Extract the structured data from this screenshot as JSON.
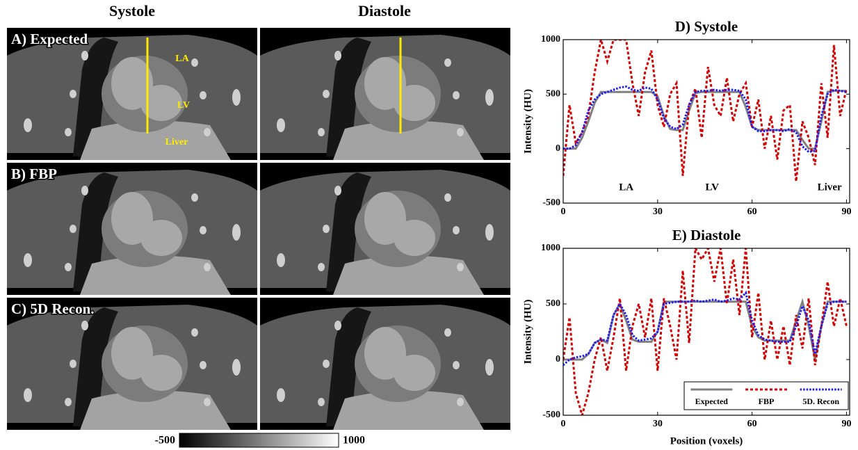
{
  "figure": {
    "column_titles": [
      "Systole",
      "Diastole"
    ],
    "row_labels": [
      "A) Expected",
      "B) FBP",
      "C) 5D Recon."
    ],
    "anatomy_labels": [
      "LA",
      "LV",
      "Liver"
    ],
    "colorbar": {
      "ticks": [
        -500,
        1000
      ]
    }
  },
  "chart_data": [
    {
      "type": "line",
      "title": "D) Systole",
      "y_label": "Intensity (HU)",
      "x": [
        0,
        2,
        4,
        6,
        8,
        10,
        12,
        14,
        16,
        18,
        20,
        22,
        24,
        26,
        28,
        30,
        32,
        34,
        36,
        38,
        40,
        42,
        44,
        46,
        48,
        50,
        52,
        54,
        56,
        58,
        60,
        62,
        64,
        66,
        68,
        70,
        72,
        74,
        76,
        78,
        80,
        82,
        84,
        86,
        88,
        90
      ],
      "xlim": [
        0,
        91
      ],
      "xticks": [
        0,
        30,
        60,
        90
      ],
      "ylim": [
        -500,
        1000
      ],
      "yticks": [
        -500,
        0,
        500,
        1000
      ],
      "annotations": [
        "LA",
        "LV",
        "Liver"
      ],
      "series": [
        {
          "name": "Expected",
          "color": "#808080",
          "style": "solid",
          "values": [
            0,
            0,
            0,
            100,
            250,
            420,
            520,
            520,
            520,
            520,
            520,
            520,
            520,
            520,
            520,
            480,
            300,
            180,
            170,
            170,
            350,
            510,
            520,
            520,
            520,
            520,
            520,
            520,
            520,
            380,
            200,
            170,
            170,
            170,
            170,
            170,
            170,
            170,
            80,
            0,
            0,
            250,
            520,
            530,
            530,
            530
          ]
        },
        {
          "name": "FBP",
          "color": "#d40000",
          "style": "dotted",
          "values": [
            -250,
            400,
            50,
            150,
            300,
            700,
            1000,
            800,
            1000,
            1000,
            1000,
            600,
            300,
            700,
            900,
            400,
            200,
            500,
            600,
            -250,
            400,
            550,
            100,
            750,
            400,
            300,
            650,
            250,
            500,
            600,
            200,
            450,
            0,
            300,
            -100,
            350,
            400,
            -300,
            250,
            100,
            -150,
            600,
            100,
            950,
            300,
            550
          ]
        },
        {
          "name": "5D. Recon",
          "color": "#1a1aff",
          "style": "dotted-fine",
          "values": [
            0,
            0,
            30,
            150,
            350,
            450,
            500,
            520,
            540,
            560,
            570,
            540,
            530,
            560,
            550,
            450,
            280,
            200,
            180,
            220,
            400,
            520,
            530,
            530,
            540,
            530,
            540,
            540,
            530,
            450,
            200,
            160,
            160,
            170,
            170,
            160,
            180,
            150,
            20,
            -30,
            -20,
            300,
            500,
            540,
            530,
            520
          ]
        }
      ]
    },
    {
      "type": "line",
      "title": "E) Diastole",
      "y_label": "Intensity (HU)",
      "x_label": "Position (voxels)",
      "x": [
        0,
        2,
        4,
        6,
        8,
        10,
        12,
        14,
        16,
        18,
        20,
        22,
        24,
        26,
        28,
        30,
        32,
        34,
        36,
        38,
        40,
        42,
        44,
        46,
        48,
        50,
        52,
        54,
        56,
        58,
        60,
        62,
        64,
        66,
        68,
        70,
        72,
        74,
        76,
        78,
        80,
        82,
        84,
        86,
        88,
        90
      ],
      "xlim": [
        0,
        91
      ],
      "xticks": [
        0,
        30,
        60,
        90
      ],
      "ylim": [
        -500,
        1000
      ],
      "yticks": [
        -500,
        0,
        500,
        1000
      ],
      "legend": "lower right",
      "series": [
        {
          "name": "Expected",
          "color": "#808080",
          "style": "solid",
          "values": [
            0,
            0,
            0,
            0,
            50,
            150,
            180,
            150,
            400,
            500,
            350,
            180,
            160,
            160,
            160,
            250,
            520,
            520,
            520,
            520,
            520,
            520,
            520,
            520,
            520,
            520,
            520,
            520,
            520,
            520,
            300,
            200,
            170,
            170,
            170,
            170,
            170,
            350,
            520,
            300,
            0,
            300,
            520,
            520,
            520,
            520
          ]
        },
        {
          "name": "FBP",
          "color": "#d40000",
          "style": "dotted",
          "values": [
            0,
            380,
            -300,
            -500,
            -300,
            0,
            200,
            -100,
            200,
            550,
            -100,
            300,
            500,
            200,
            550,
            -100,
            550,
            300,
            0,
            800,
            150,
            1000,
            900,
            1000,
            700,
            1000,
            500,
            900,
            400,
            1000,
            200,
            600,
            0,
            350,
            0,
            300,
            -50,
            400,
            100,
            550,
            -50,
            300,
            700,
            300,
            550,
            300
          ]
        },
        {
          "name": "5D. Recon",
          "color": "#1a1aff",
          "style": "dotted-fine",
          "values": [
            -50,
            0,
            20,
            30,
            50,
            150,
            180,
            170,
            400,
            500,
            400,
            220,
            170,
            180,
            190,
            250,
            500,
            510,
            520,
            520,
            520,
            530,
            520,
            530,
            540,
            520,
            530,
            550,
            540,
            600,
            350,
            220,
            180,
            170,
            160,
            160,
            160,
            300,
            480,
            350,
            50,
            300,
            500,
            520,
            520,
            520
          ]
        }
      ]
    }
  ]
}
